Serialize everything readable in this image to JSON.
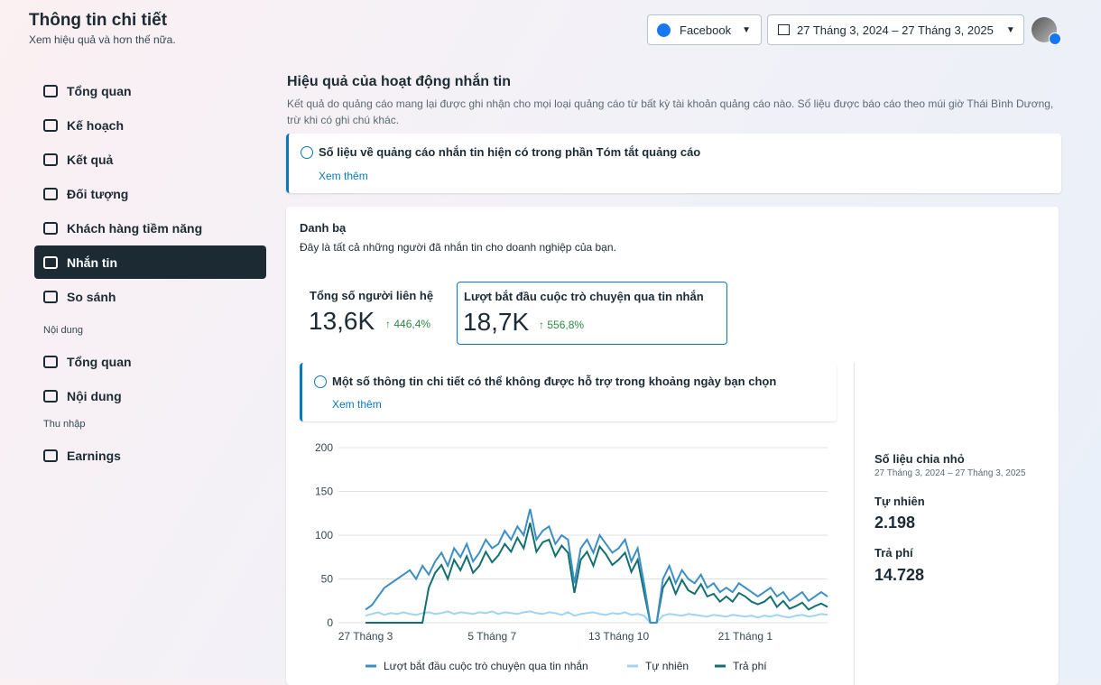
{
  "header": {
    "title": "Thông tin chi tiết",
    "subtitle": "Xem hiệu quả và hơn thế nữa.",
    "platform": "Facebook",
    "date_range": "27 Tháng 3, 2024 – 27 Tháng 3, 2025"
  },
  "sidebar": {
    "items": [
      "Tổng quan",
      "Kế hoạch",
      "Kết quả",
      "Đối tượng",
      "Khách hàng tiềm năng",
      "Nhắn tin",
      "So sánh"
    ],
    "groups": [
      {
        "label": "Nội dung",
        "items": [
          "Tổng quan",
          "Nội dung"
        ]
      },
      {
        "label": "Thu nhập",
        "items": [
          "Earnings"
        ]
      }
    ]
  },
  "section": {
    "title": "Hiệu quả của hoạt động nhắn tin",
    "description": "Kết quả do quảng cáo mang lại được ghi nhận cho mọi loại quảng cáo từ bất kỳ tài khoản quảng cáo nào. Số liệu được báo cáo theo múi giờ Thái Bình Dương, trừ khi có ghi chú khác.",
    "notice": "Số liệu về quảng cáo nhắn tin hiện có trong phần Tóm tắt quảng cáo",
    "notice_link": "Xem thêm"
  },
  "contacts": {
    "title": "Danh bạ",
    "description": "Đây là tất cả những người đã nhắn tin cho doanh nghiệp của bạn.",
    "metrics": [
      {
        "label": "Tổng số người liên hệ",
        "value": "13,6K",
        "change": "446,4%"
      },
      {
        "label": "Lượt bắt đầu cuộc trò chuyện qua tin nhắn",
        "value": "18,7K",
        "change": "556,8%"
      }
    ],
    "warning": "Một số thông tin chi tiết có thể không được hỗ trợ trong khoảng ngày bạn chọn",
    "warning_link": "Xem thêm"
  },
  "breakdown": {
    "title": "Số liệu chia nhỏ",
    "date_range": "27 Tháng 3, 2024 – 27 Tháng 3, 2025",
    "items": [
      {
        "label": "Tự nhiên",
        "value": "2.198"
      },
      {
        "label": "Trả phí",
        "value": "14.728"
      }
    ]
  },
  "chart_data": {
    "type": "line",
    "categories": [
      "27 Tháng 3",
      null,
      null,
      null,
      null,
      null,
      null,
      null,
      null,
      null,
      null,
      null,
      null,
      null,
      null,
      null,
      null,
      null,
      null,
      null,
      "5 Tháng 7",
      null,
      null,
      null,
      null,
      null,
      null,
      null,
      null,
      null,
      null,
      null,
      null,
      null,
      null,
      null,
      null,
      null,
      null,
      null,
      "13 Tháng 10",
      null,
      null,
      null,
      null,
      null,
      null,
      null,
      null,
      null,
      null,
      null,
      null,
      null,
      null,
      null,
      null,
      null,
      null,
      null,
      "21 Tháng 1",
      null,
      null,
      null,
      null,
      null,
      null,
      null,
      null,
      null,
      null,
      null,
      null,
      null
    ],
    "series": [
      {
        "name": "Lượt bắt đầu cuộc trò chuyện qua tin nhắn",
        "color": "#3b8fc4",
        "values": [
          15,
          20,
          30,
          40,
          45,
          50,
          55,
          60,
          50,
          65,
          55,
          70,
          80,
          65,
          85,
          75,
          90,
          70,
          80,
          95,
          85,
          90,
          105,
          95,
          110,
          100,
          130,
          95,
          105,
          110,
          90,
          100,
          95,
          45,
          85,
          95,
          80,
          100,
          90,
          80,
          85,
          95,
          70,
          85,
          45,
          0,
          0,
          50,
          65,
          45,
          60,
          50,
          45,
          55,
          40,
          45,
          35,
          40,
          35,
          45,
          40,
          35,
          30,
          35,
          40,
          30,
          35,
          25,
          30,
          35,
          25,
          30,
          35,
          30
        ]
      },
      {
        "name": "Tự nhiên",
        "color": "#9fd4f2",
        "values": [
          8,
          10,
          12,
          9,
          11,
          10,
          12,
          10,
          9,
          11,
          12,
          10,
          11,
          13,
          10,
          12,
          11,
          10,
          12,
          11,
          13,
          10,
          12,
          11,
          10,
          12,
          13,
          11,
          10,
          12,
          11,
          9,
          12,
          8,
          10,
          11,
          12,
          10,
          9,
          11,
          10,
          12,
          9,
          10,
          8,
          0,
          0,
          8,
          10,
          9,
          8,
          10,
          9,
          8,
          7,
          9,
          8,
          7,
          9,
          8,
          7,
          8,
          6,
          8,
          7,
          9,
          7,
          6,
          8,
          9,
          7,
          8,
          10,
          9
        ]
      },
      {
        "name": "Trả phí",
        "color": "#13706f",
        "values": [
          0,
          0,
          0,
          0,
          0,
          0,
          0,
          0,
          0,
          0,
          40,
          57,
          66,
          50,
          72,
          60,
          76,
          57,
          65,
          81,
          69,
          77,
          90,
          81,
          97,
          85,
          114,
          81,
          92,
          95,
          76,
          88,
          80,
          34,
          72,
          81,
          65,
          87,
          78,
          66,
          72,
          80,
          58,
          72,
          35,
          0,
          0,
          40,
          52,
          33,
          49,
          37,
          33,
          44,
          30,
          33,
          24,
          30,
          24,
          34,
          30,
          24,
          21,
          24,
          30,
          18,
          25,
          16,
          19,
          23,
          15,
          19,
          22,
          18
        ]
      }
    ],
    "ylim": [
      0,
      200
    ],
    "yticks": [
      0,
      50,
      100,
      150,
      200
    ],
    "grid": true
  }
}
